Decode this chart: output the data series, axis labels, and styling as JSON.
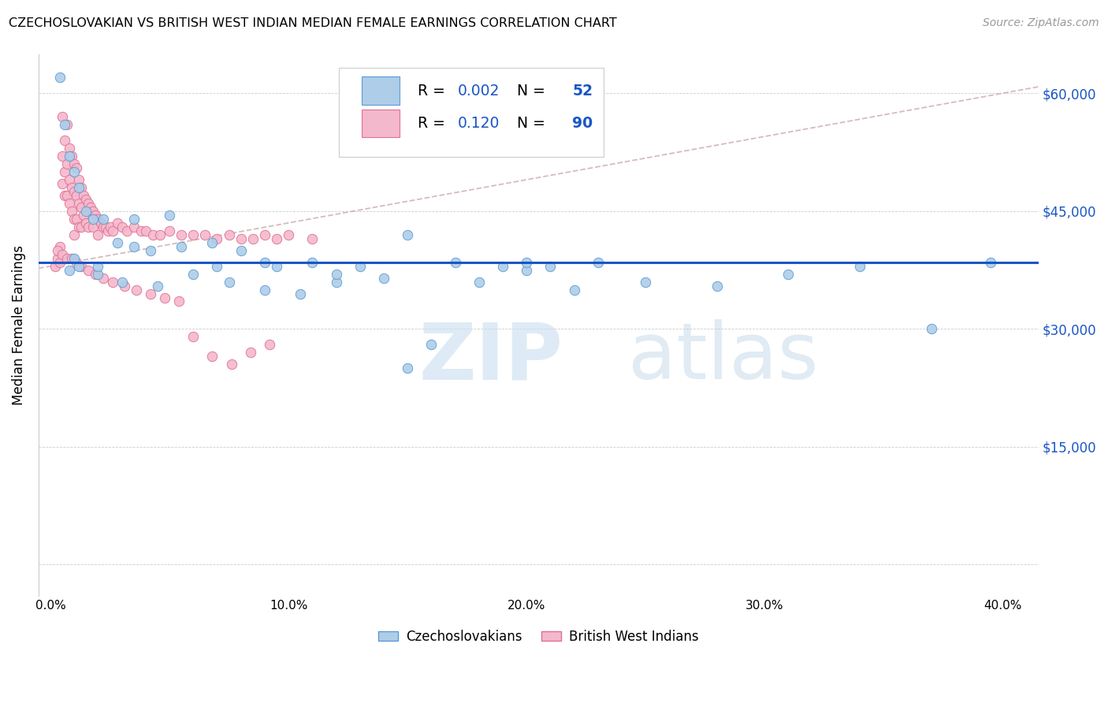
{
  "title": "CZECHOSLOVAKIAN VS BRITISH WEST INDIAN MEDIAN FEMALE EARNINGS CORRELATION CHART",
  "source": "Source: ZipAtlas.com",
  "xlabel_ticks": [
    "0.0%",
    "10.0%",
    "20.0%",
    "30.0%",
    "40.0%"
  ],
  "xlabel_vals": [
    0.0,
    0.1,
    0.2,
    0.3,
    0.4
  ],
  "ylabel": "Median Female Earnings",
  "yticks": [
    0,
    15000,
    30000,
    45000,
    60000
  ],
  "ytick_labels": [
    "",
    "$15,000",
    "$30,000",
    "$45,000",
    "$60,000"
  ],
  "xmin": -0.005,
  "xmax": 0.415,
  "ymin": -4000,
  "ymax": 65000,
  "legend_blue_label": "Czechoslovakians",
  "legend_pink_label": "British West Indians",
  "r_blue": "0.002",
  "n_blue": "52",
  "r_pink": "0.120",
  "n_pink": "90",
  "blue_color": "#aecde8",
  "pink_color": "#f4b8cc",
  "blue_edge_color": "#5b9bd5",
  "pink_edge_color": "#e07090",
  "blue_line_color": "#1a56c4",
  "pink_line_color": "#e87fa0",
  "blue_scatter_x": [
    0.004,
    0.006,
    0.008,
    0.01,
    0.012,
    0.015,
    0.018,
    0.022,
    0.028,
    0.035,
    0.042,
    0.055,
    0.068,
    0.08,
    0.095,
    0.11,
    0.13,
    0.15,
    0.17,
    0.19,
    0.21,
    0.23,
    0.008,
    0.012,
    0.02,
    0.03,
    0.045,
    0.06,
    0.075,
    0.09,
    0.105,
    0.12,
    0.14,
    0.16,
    0.18,
    0.2,
    0.22,
    0.25,
    0.28,
    0.31,
    0.34,
    0.37,
    0.395,
    0.01,
    0.02,
    0.035,
    0.05,
    0.07,
    0.09,
    0.12,
    0.15,
    0.2
  ],
  "blue_scatter_y": [
    62000,
    56000,
    52000,
    50000,
    48000,
    45000,
    44000,
    44000,
    41000,
    40500,
    40000,
    40500,
    41000,
    40000,
    38000,
    38500,
    38000,
    42000,
    38500,
    38000,
    38000,
    38500,
    37500,
    38000,
    37000,
    36000,
    35500,
    37000,
    36000,
    35000,
    34500,
    36000,
    36500,
    28000,
    36000,
    37500,
    35000,
    36000,
    35500,
    37000,
    38000,
    30000,
    38500,
    39000,
    38000,
    44000,
    44500,
    38000,
    38500,
    37000,
    25000,
    38500
  ],
  "pink_scatter_x": [
    0.002,
    0.003,
    0.004,
    0.004,
    0.005,
    0.005,
    0.005,
    0.006,
    0.006,
    0.006,
    0.007,
    0.007,
    0.007,
    0.008,
    0.008,
    0.008,
    0.009,
    0.009,
    0.009,
    0.01,
    0.01,
    0.01,
    0.01,
    0.011,
    0.011,
    0.011,
    0.012,
    0.012,
    0.012,
    0.013,
    0.013,
    0.013,
    0.014,
    0.014,
    0.015,
    0.015,
    0.016,
    0.016,
    0.017,
    0.018,
    0.018,
    0.019,
    0.02,
    0.02,
    0.021,
    0.022,
    0.023,
    0.024,
    0.025,
    0.026,
    0.028,
    0.03,
    0.032,
    0.035,
    0.038,
    0.04,
    0.043,
    0.046,
    0.05,
    0.055,
    0.06,
    0.065,
    0.07,
    0.075,
    0.08,
    0.085,
    0.09,
    0.095,
    0.1,
    0.11,
    0.003,
    0.005,
    0.007,
    0.009,
    0.011,
    0.013,
    0.016,
    0.019,
    0.022,
    0.026,
    0.031,
    0.036,
    0.042,
    0.048,
    0.054,
    0.06,
    0.068,
    0.076,
    0.084,
    0.092
  ],
  "pink_scatter_y": [
    38000,
    39000,
    40500,
    38500,
    57000,
    52000,
    48500,
    54000,
    50000,
    47000,
    56000,
    51000,
    47000,
    53000,
    49000,
    46000,
    52000,
    48000,
    45000,
    51000,
    47500,
    44000,
    42000,
    50500,
    47000,
    44000,
    49000,
    46000,
    43000,
    48000,
    45500,
    43000,
    47000,
    44500,
    46500,
    43500,
    46000,
    43000,
    45500,
    45000,
    43000,
    44500,
    44000,
    42000,
    43500,
    43000,
    43000,
    42500,
    43000,
    42500,
    43500,
    43000,
    42500,
    43000,
    42500,
    42500,
    42000,
    42000,
    42500,
    42000,
    42000,
    42000,
    41500,
    42000,
    41500,
    41500,
    42000,
    41500,
    42000,
    41500,
    40000,
    39500,
    39000,
    39000,
    38500,
    38000,
    37500,
    37000,
    36500,
    36000,
    35500,
    35000,
    34500,
    34000,
    33500,
    29000,
    26500,
    25500,
    27000,
    28000
  ]
}
